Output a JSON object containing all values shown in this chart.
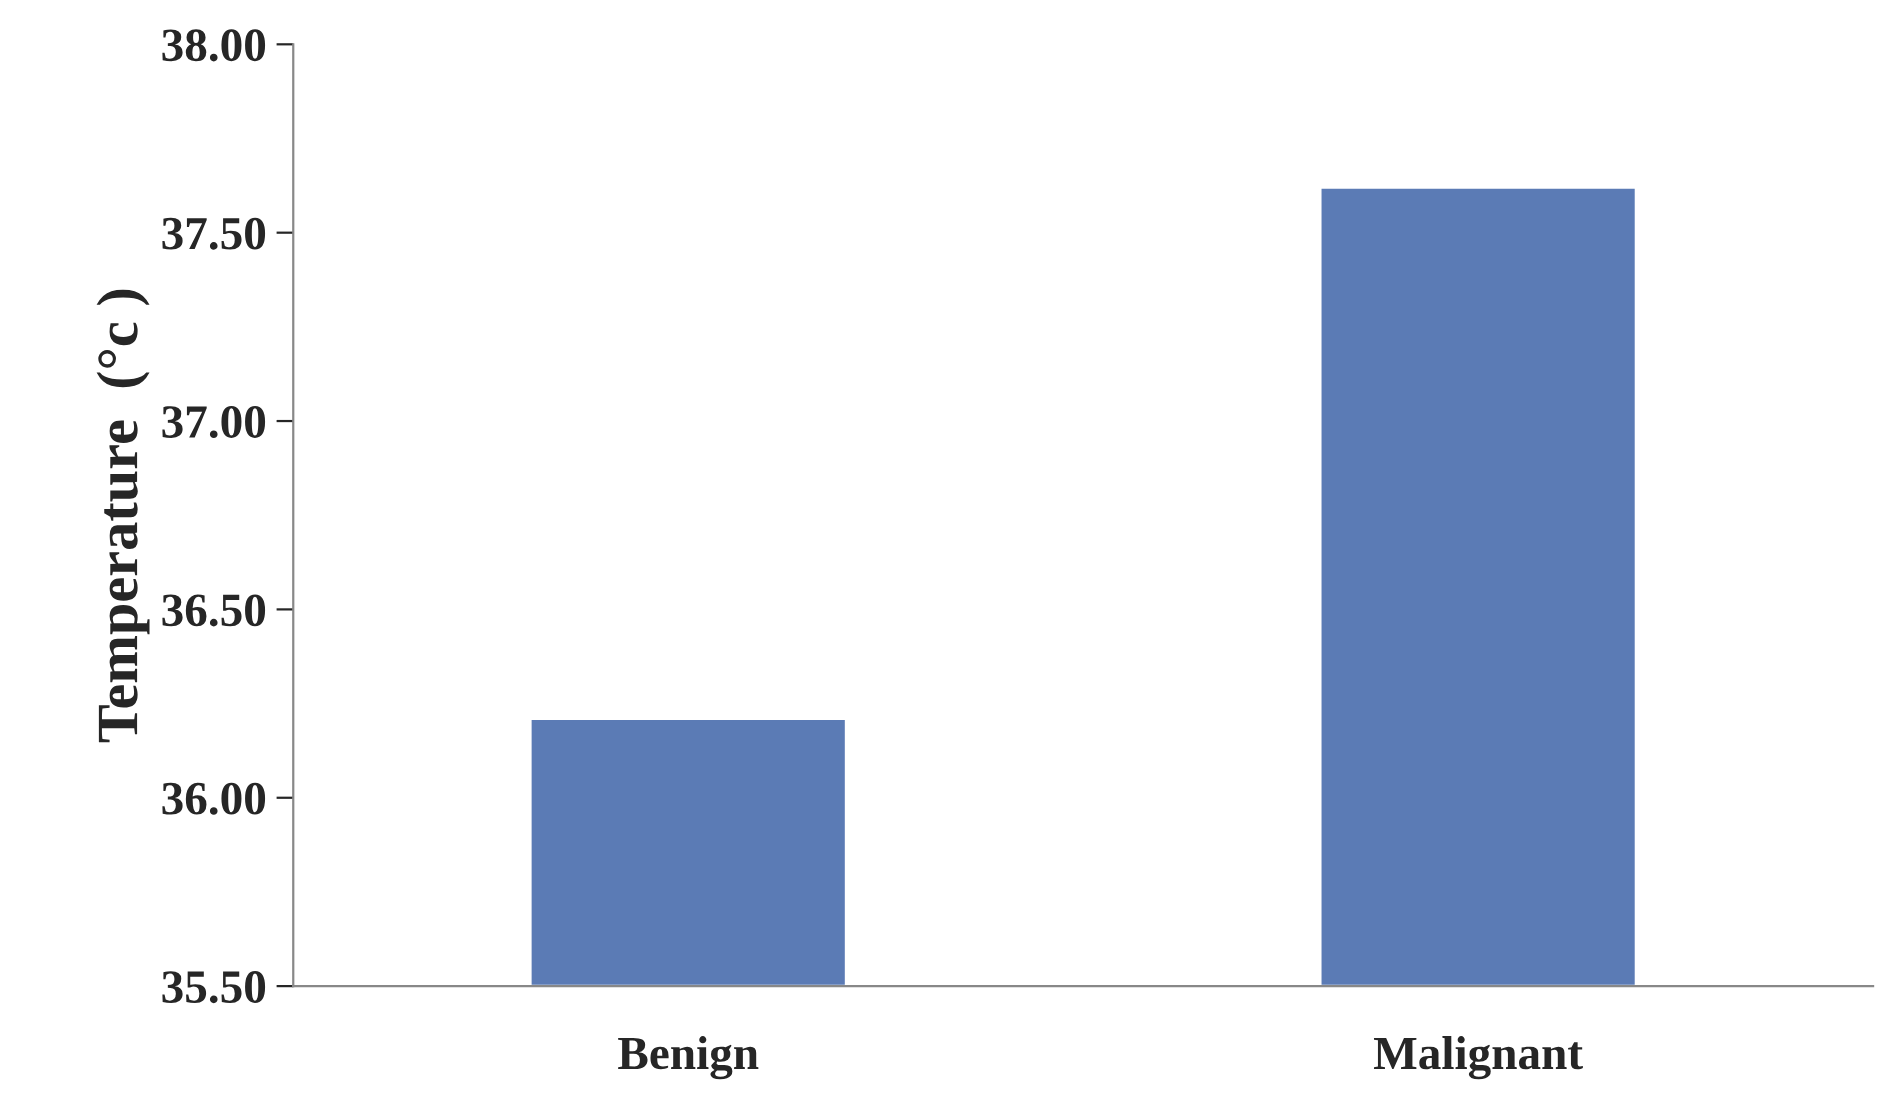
{
  "chart_data": {
    "type": "bar",
    "ylabel": "Temperature  (°c )",
    "categories": [
      "Benign",
      "Malignant"
    ],
    "values": [
      36.21,
      37.62
    ],
    "color": "#5b7bb5",
    "ylim": [
      35.5,
      38.0
    ],
    "yticks": [
      {
        "value": 35.5,
        "label": "35.50"
      },
      {
        "value": 36.0,
        "label": "36.00"
      },
      {
        "value": 36.5,
        "label": "36.50"
      },
      {
        "value": 37.0,
        "label": "37.00"
      },
      {
        "value": 37.5,
        "label": "37.50"
      },
      {
        "value": 38.0,
        "label": "38.00"
      }
    ],
    "grid": false
  }
}
